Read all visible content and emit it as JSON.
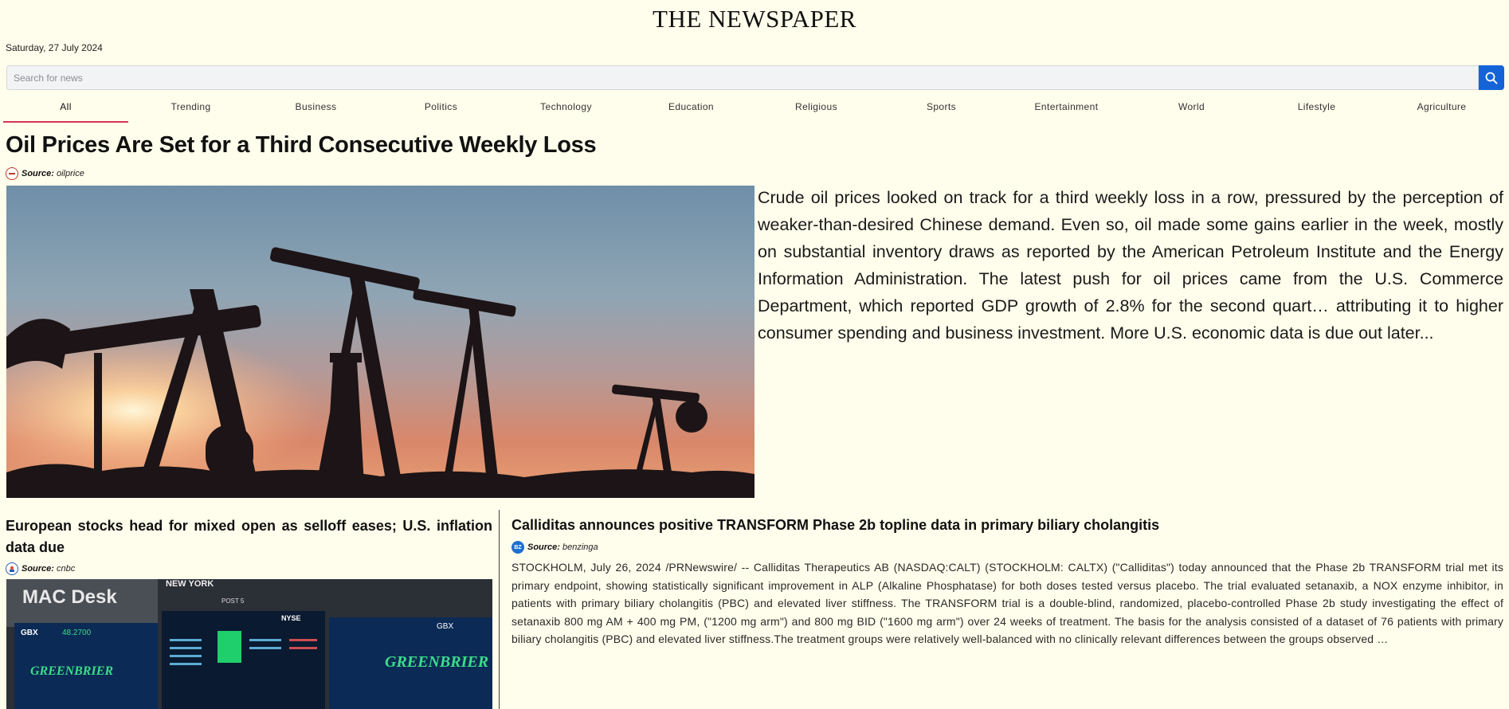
{
  "masthead": "THE NEWSPAPER",
  "date": "Saturday, 27 July 2024",
  "search": {
    "placeholder": "Search for news",
    "button_icon": "search-icon"
  },
  "categories": [
    "All",
    "Trending",
    "Business",
    "Politics",
    "Technology",
    "Education",
    "Religious",
    "Sports",
    "Entertainment",
    "World",
    "Lifestyle",
    "Agriculture"
  ],
  "active_category": "All",
  "accent_color": "#d9335a",
  "button_color": "#1464d8",
  "lead": {
    "title": "Oil Prices Are Set for a Third Consecutive Weekly Loss",
    "source_label": "Source:",
    "source": "oilprice",
    "summary": "Crude oil prices looked on track for a third weekly loss in a row, pressured by the perception of weaker-than-desired Chinese demand. Even so, oil made some gains earlier in the week, mostly on substantial inventory draws as reported by the American Petroleum Institute and the Energy Information Administration. The latest push for oil prices came from the U.S. Commerce Department, which reported GDP growth of 2.8% for the second quart… attributing it to higher consumer spending and business investment. More U.S. economic data is due out later..."
  },
  "story_left": {
    "title": "European stocks head for mixed open as selloff eases; U.S. inflation data due",
    "source_label": "Source:",
    "source": "cnbc",
    "image_text": {
      "desk": "MAC Desk",
      "company": "GREENBRIER",
      "exchange": "NYSE",
      "price": "48.2700",
      "ticker": "GBX",
      "street": "NEW YORK",
      "post": "POST 5"
    }
  },
  "story_right": {
    "title": "Calliditas announces positive TRANSFORM Phase 2b topline data in primary biliary cholangitis",
    "source_label": "Source:",
    "source": "benzinga",
    "source_badge": "BZ",
    "body": "STOCKHOLM, July 26, 2024 /PRNewswire/ -- Calliditas Therapeutics AB (NASDAQ:CALT) (STOCKHOLM: CALTX) (\"Calliditas\") today announced that the Phase 2b TRANSFORM trial met its primary endpoint, showing statistically significant improvement in ALP (Alkaline Phosphatase) for both doses tested versus placebo. The trial evaluated setanaxib, a NOX enzyme inhibitor, in patients with primary biliary cholangitis (PBC) and elevated liver stiffness. The TRANSFORM trial is a double-blind, randomized, placebo-controlled Phase 2b study investigating the effect of setanaxib 800 mg AM + 400 mg PM, (\"1200 mg arm\") and 800 mg BID (\"1600 mg arm\") over 24 weeks of treatment. The basis for the analysis consisted of a dataset of 76 patients with primary biliary cholangitis (PBC) and elevated liver stiffness.The treatment groups were relatively well-balanced with no clinically relevant differences between the groups observed …"
  }
}
